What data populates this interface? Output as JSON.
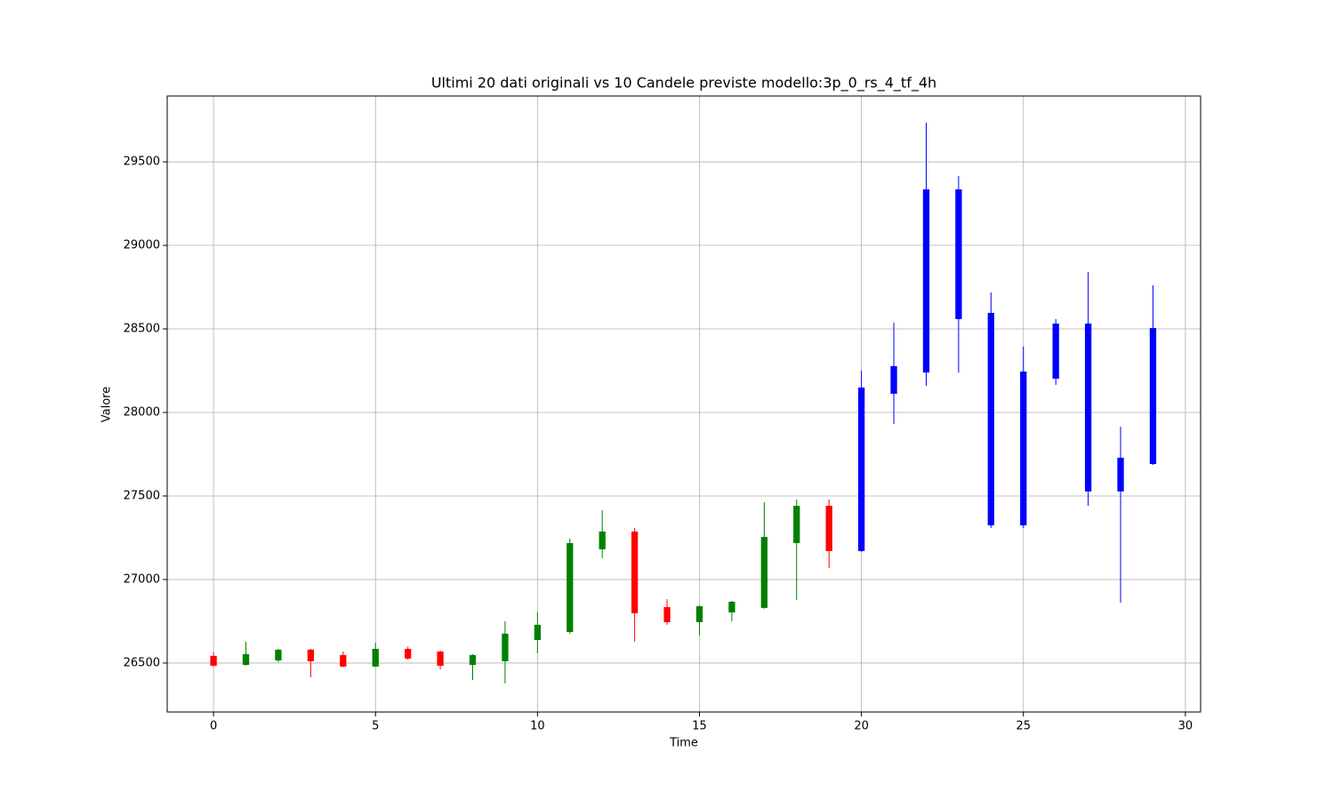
{
  "chart_data": {
    "type": "candlestick",
    "title": "Ultimi 20 dati originali vs 10 Candele previste modello:3p_0_rs_4_tf_4h",
    "x_label": "Time",
    "y_label": "Valore",
    "xlim": [
      -1.43,
      30.47
    ],
    "ylim": [
      26207,
      29894
    ],
    "xticks": [
      0,
      5,
      10,
      15,
      20,
      25,
      30
    ],
    "yticks": [
      26500,
      27000,
      27500,
      28000,
      28500,
      29000,
      29500
    ],
    "grid": true,
    "series": [
      {
        "up_color": "#008000",
        "down_color": "#ff0000",
        "x": [
          0,
          1,
          2,
          3,
          4,
          5,
          6,
          7,
          8,
          9,
          10,
          11,
          12,
          13,
          14,
          15,
          16,
          17,
          18,
          19
        ],
        "open": [
          26543,
          26489,
          26516,
          26580,
          26548,
          26479,
          26585,
          26569,
          26489,
          26511,
          26638,
          26686,
          27181,
          27287,
          26835,
          26745,
          26803,
          26830,
          27218,
          27441
        ],
        "high": [
          26565,
          26628,
          26585,
          26585,
          26569,
          26622,
          26598,
          26575,
          26553,
          26750,
          26803,
          27245,
          27415,
          27309,
          26883,
          26845,
          26872,
          27463,
          27479,
          27479
        ],
        "low": [
          26480,
          26485,
          26505,
          26415,
          26475,
          26475,
          26520,
          26463,
          26399,
          26378,
          26559,
          26676,
          27128,
          26628,
          26729,
          26665,
          26750,
          26825,
          26878,
          27069
        ],
        "close": [
          26484,
          26553,
          26580,
          26511,
          26479,
          26585,
          26527,
          26484,
          26548,
          26676,
          26729,
          27218,
          27287,
          26798,
          26745,
          26840,
          26867,
          27255,
          27441,
          27170
        ]
      },
      {
        "up_color": "#0000ff",
        "down_color": "#0000ff",
        "x": [
          20,
          21,
          22,
          23,
          24,
          25,
          26,
          27,
          28,
          29
        ],
        "open": [
          27170,
          28112,
          28239,
          28559,
          27324,
          27324,
          28202,
          27527,
          27527,
          27691
        ],
        "high": [
          28250,
          28537,
          29734,
          29415,
          28718,
          28394,
          28559,
          28840,
          27915,
          28761
        ],
        "low": [
          27165,
          27931,
          28160,
          28239,
          27309,
          27309,
          28165,
          27441,
          26862,
          27686
        ],
        "close": [
          28149,
          28277,
          29335,
          29335,
          28596,
          28245,
          28532,
          28532,
          27729,
          28505
        ]
      }
    ]
  }
}
